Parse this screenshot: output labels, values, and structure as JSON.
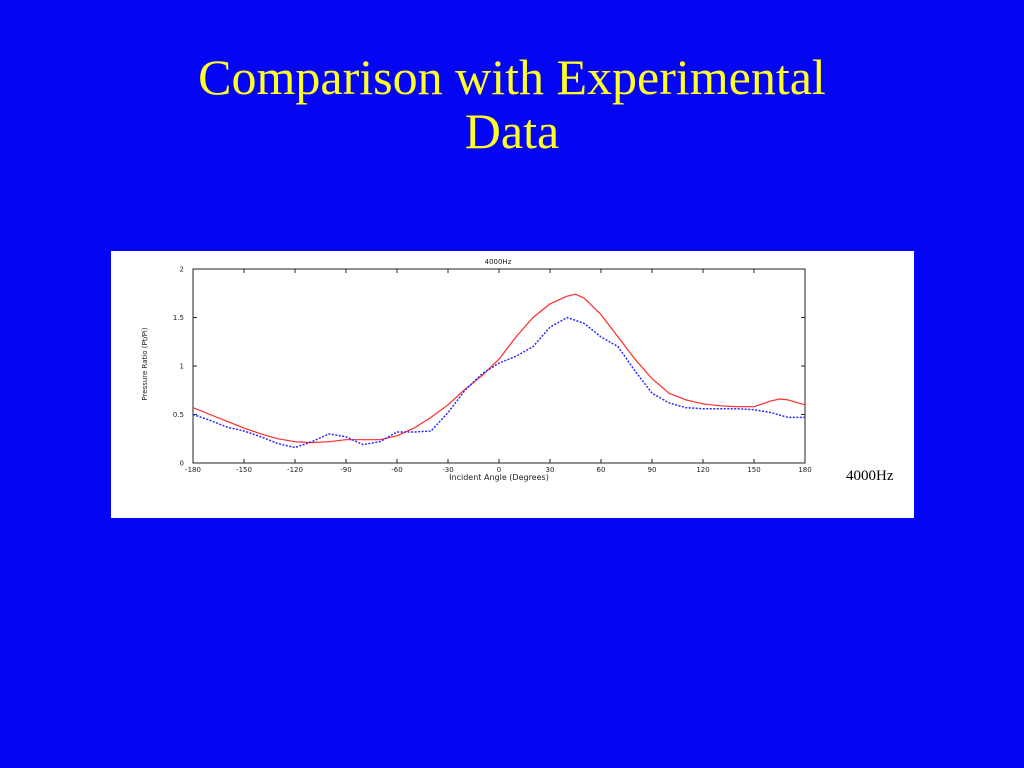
{
  "slide": {
    "title_line1": "Comparison with Experimental",
    "title_line2": "Data",
    "title_color": "#ffff26",
    "background_color": "#0505f5"
  },
  "chart_data": {
    "type": "line",
    "title": "4000Hz",
    "xlabel": "Incident Angle (Degrees)",
    "ylabel": "Pressure Ratio (Pt/Pi)",
    "xlim": [
      -180,
      180
    ],
    "ylim": [
      0,
      2
    ],
    "xticks": [
      -180,
      -150,
      -120,
      -90,
      -60,
      -30,
      0,
      30,
      60,
      90,
      120,
      150,
      180
    ],
    "yticks": [
      0,
      0.5,
      1,
      1.5,
      2
    ],
    "ytick_labels": [
      "0",
      "0.5",
      "1",
      "1.5",
      "2"
    ],
    "grid": false,
    "annotation": "4000Hz",
    "series": [
      {
        "style": "solid",
        "color": "#ff2a2a",
        "x": [
          -180,
          -170,
          -160,
          -150,
          -140,
          -130,
          -120,
          -110,
          -100,
          -90,
          -80,
          -70,
          -60,
          -50,
          -40,
          -30,
          -20,
          -10,
          0,
          10,
          20,
          30,
          40,
          45,
          50,
          60,
          70,
          80,
          90,
          100,
          110,
          120,
          130,
          140,
          150,
          160,
          165,
          170,
          180
        ],
        "y": [
          0.57,
          0.5,
          0.43,
          0.36,
          0.3,
          0.25,
          0.22,
          0.21,
          0.22,
          0.24,
          0.24,
          0.24,
          0.28,
          0.36,
          0.47,
          0.6,
          0.76,
          0.9,
          1.07,
          1.3,
          1.5,
          1.64,
          1.72,
          1.74,
          1.7,
          1.53,
          1.3,
          1.07,
          0.87,
          0.72,
          0.65,
          0.61,
          0.59,
          0.58,
          0.58,
          0.64,
          0.66,
          0.65,
          0.6
        ]
      },
      {
        "style": "dotted",
        "color": "#2a2aff",
        "x": [
          -180,
          -170,
          -160,
          -150,
          -140,
          -130,
          -120,
          -110,
          -100,
          -90,
          -80,
          -70,
          -60,
          -50,
          -40,
          -30,
          -20,
          -10,
          0,
          10,
          20,
          30,
          40,
          50,
          60,
          70,
          80,
          90,
          100,
          110,
          120,
          130,
          140,
          150,
          160,
          170,
          180
        ],
        "y": [
          0.5,
          0.44,
          0.37,
          0.33,
          0.27,
          0.2,
          0.16,
          0.22,
          0.3,
          0.27,
          0.19,
          0.22,
          0.32,
          0.32,
          0.33,
          0.52,
          0.75,
          0.92,
          1.03,
          1.1,
          1.2,
          1.4,
          1.5,
          1.44,
          1.3,
          1.2,
          0.95,
          0.72,
          0.62,
          0.57,
          0.56,
          0.56,
          0.56,
          0.55,
          0.52,
          0.47,
          0.47
        ]
      }
    ]
  }
}
